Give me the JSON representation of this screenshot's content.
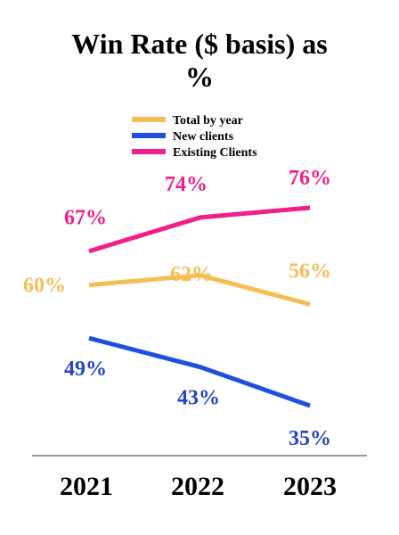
{
  "chart_data": {
    "type": "line",
    "title_lines": [
      "Win Rate ($ basis) as",
      "%"
    ],
    "categories": [
      "2021",
      "2022",
      "2023"
    ],
    "series": [
      {
        "name": "Total by year",
        "color": "#F5BE55",
        "values": [
          60,
          62,
          56
        ],
        "labels": [
          "60%",
          "62%",
          "56%"
        ]
      },
      {
        "name": "New clients",
        "color": "#1F4FE0",
        "values": [
          49,
          43,
          35
        ],
        "labels": [
          "49%",
          "43%",
          "35%"
        ]
      },
      {
        "name": "Existing Clients",
        "color": "#F01F8A",
        "values": [
          67,
          74,
          76
        ],
        "labels": [
          "67%",
          "74%",
          "76%"
        ]
      }
    ],
    "legend_position": "top-center",
    "grid": false,
    "ylim": [
      30,
      80
    ]
  }
}
